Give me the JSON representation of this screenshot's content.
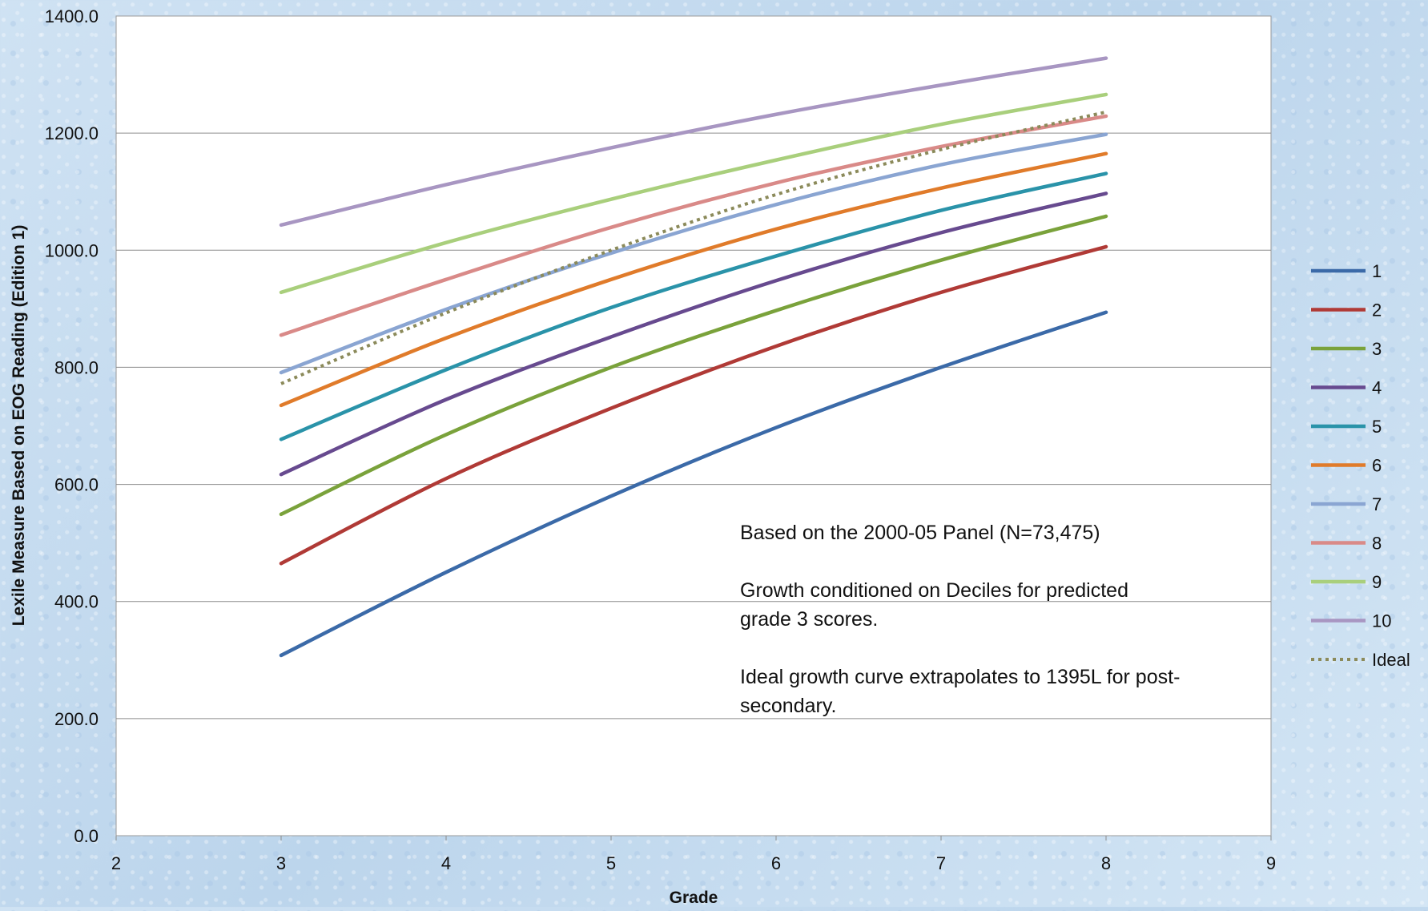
{
  "chart_data": {
    "type": "line",
    "xlabel": "Grade",
    "ylabel": "Lexile Measure Based on EOG Reading (Edition 1)",
    "xlim": [
      2,
      9
    ],
    "ylim": [
      0,
      1400
    ],
    "x_ticks": [
      "2",
      "3",
      "4",
      "5",
      "6",
      "7",
      "8",
      "9"
    ],
    "y_ticks": [
      "0.0",
      "200.0",
      "400.0",
      "600.0",
      "800.0",
      "1000.0",
      "1200.0",
      "1400.0"
    ],
    "grid": true,
    "legend_position": "right",
    "x": [
      3,
      4,
      5,
      6,
      7,
      8
    ],
    "series": [
      {
        "name": "1",
        "color": "#3b6aa8",
        "dash": false,
        "values": [
          308,
          450,
          580,
          697,
          800,
          894
        ]
      },
      {
        "name": "2",
        "color": "#b03a36",
        "dash": false,
        "values": [
          465,
          610,
          730,
          836,
          928,
          1006
        ]
      },
      {
        "name": "3",
        "color": "#7aa23b",
        "dash": false,
        "values": [
          549,
          685,
          800,
          897,
          983,
          1058
        ]
      },
      {
        "name": "4",
        "color": "#674a8f",
        "dash": false,
        "values": [
          617,
          745,
          852,
          948,
          1030,
          1097
        ]
      },
      {
        "name": "5",
        "color": "#2a93a9",
        "dash": false,
        "values": [
          677,
          796,
          902,
          990,
          1068,
          1131
        ]
      },
      {
        "name": "6",
        "color": "#e07b2a",
        "dash": false,
        "values": [
          735,
          850,
          950,
          1036,
          1106,
          1165
        ]
      },
      {
        "name": "7",
        "color": "#8aa5d2",
        "dash": false,
        "values": [
          791,
          899,
          995,
          1078,
          1146,
          1198
        ]
      },
      {
        "name": "8",
        "color": "#d98a88",
        "dash": false,
        "values": [
          855,
          950,
          1039,
          1115,
          1177,
          1229
        ]
      },
      {
        "name": "9",
        "color": "#a9cf7c",
        "dash": false,
        "values": [
          928,
          1013,
          1087,
          1154,
          1215,
          1266
        ]
      },
      {
        "name": "10",
        "color": "#a896c2",
        "dash": false,
        "values": [
          1043,
          1112,
          1175,
          1232,
          1282,
          1328
        ]
      },
      {
        "name": "Ideal",
        "color": "#8b8a5a",
        "dash": true,
        "values": [
          772,
          893,
          1000,
          1095,
          1172,
          1236
        ]
      }
    ],
    "annotation": {
      "line1": "Based on the 2000-05 Panel (N=73,475)",
      "line2": "Growth conditioned on Deciles for predicted",
      "line3": "grade 3 scores.",
      "line4": "Ideal growth curve extrapolates to 1395L for post-",
      "line5": "secondary."
    }
  }
}
